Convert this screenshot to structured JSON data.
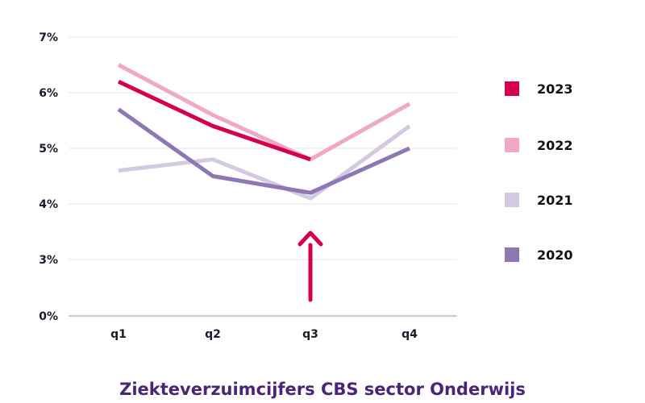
{
  "chart_data": {
    "type": "line",
    "title": "Ziekteverzuimcijfers CBS sector Onderwijs",
    "x": [
      "q1",
      "q2",
      "q3",
      "q4"
    ],
    "y_ticks": [
      "0%",
      "3%",
      "4%",
      "5%",
      "6%",
      "7%"
    ],
    "y_tick_values": [
      0,
      3,
      4,
      5,
      6,
      7
    ],
    "y_scale": "broken",
    "series": [
      {
        "name": "2020",
        "values": [
          5.7,
          4.5,
          4.2,
          5.0
        ],
        "color": "#8e78b4"
      },
      {
        "name": "2021",
        "values": [
          4.6,
          4.8,
          4.1,
          5.4
        ],
        "color": "#d4c9e1"
      },
      {
        "name": "2022",
        "values": [
          6.5,
          5.6,
          4.8,
          5.8
        ],
        "color": "#f0a8c4"
      },
      {
        "name": "2023",
        "values": [
          6.2,
          5.4,
          4.8,
          null
        ],
        "color": "#d4004f"
      }
    ],
    "legend_order": [
      "2023",
      "2022",
      "2021",
      "2020"
    ],
    "legend": "right",
    "grid": "horizontal",
    "annotation": {
      "type": "arrow",
      "at": "q3",
      "color": "#d4004f"
    }
  }
}
